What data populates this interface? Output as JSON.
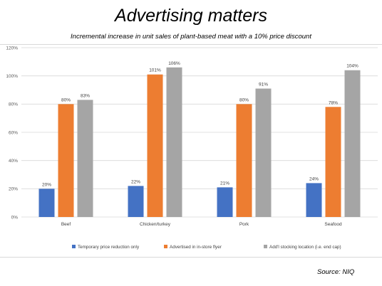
{
  "page": {
    "title": "Advertising matters",
    "subtitle": "Incremental increase in unit sales of plant-based meat with a 10% price discount",
    "source": "Source: NIQ"
  },
  "chart_data": {
    "type": "bar",
    "categories": [
      "Beef",
      "Chicken/turkey",
      "Pork",
      "Seafood"
    ],
    "series": [
      {
        "name": "Temporary price reduction only",
        "values": [
          20,
          22,
          21,
          24
        ],
        "labels": [
          "20%",
          "22%",
          "21%",
          "24%"
        ],
        "color": "#4472c4"
      },
      {
        "name": "Advertised in in-store flyer",
        "values": [
          80,
          101,
          80,
          78
        ],
        "labels": [
          "80%",
          "101%",
          "80%",
          "78%"
        ],
        "color": "#ed7d31"
      },
      {
        "name": "Add'l stocking location (i.e. end cap)",
        "values": [
          83,
          106,
          91,
          104
        ],
        "labels": [
          "83%",
          "106%",
          "91%",
          "104%"
        ],
        "color": "#a5a5a5"
      }
    ],
    "ylim": [
      0,
      120
    ],
    "yticks": [
      0,
      20,
      40,
      60,
      80,
      100,
      120
    ],
    "ytick_labels": [
      "0%",
      "20%",
      "40%",
      "60%",
      "80%",
      "100%",
      "120%"
    ],
    "grid": true,
    "legend_position": "bottom",
    "gridline_color": "#d9d9d9"
  }
}
